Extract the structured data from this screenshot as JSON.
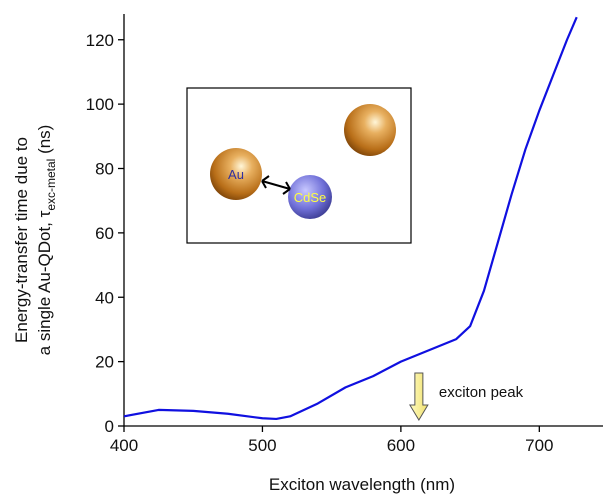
{
  "chart_data": {
    "type": "line",
    "xlabel": "Exciton wavelength (nm)",
    "ylabel": {
      "line1": "Energy-transfer time due to",
      "line2": "a single Au-QDot, τ",
      "subscript": "exc-metal",
      "unit": " (ns)"
    },
    "x": [
      400,
      425,
      450,
      475,
      500,
      510,
      520,
      540,
      560,
      580,
      600,
      620,
      640,
      650,
      660,
      670,
      680,
      690,
      700,
      710,
      720,
      727
    ],
    "values": [
      3,
      5,
      4.7,
      3.8,
      2.4,
      2.2,
      3,
      7,
      12,
      15.5,
      20,
      23.5,
      27,
      31,
      42,
      57,
      72,
      86,
      98,
      109,
      120,
      127
    ],
    "color": "#1010e0",
    "xlim": [
      400,
      746
    ],
    "ylim": [
      0,
      128
    ],
    "xticks": [
      400,
      500,
      600,
      700
    ],
    "yticks": [
      0,
      20,
      40,
      60,
      80,
      100,
      120
    ],
    "annotation": {
      "text": "exciton peak",
      "x": 613
    },
    "inset_labels": [
      "Au",
      "CdSe"
    ]
  }
}
